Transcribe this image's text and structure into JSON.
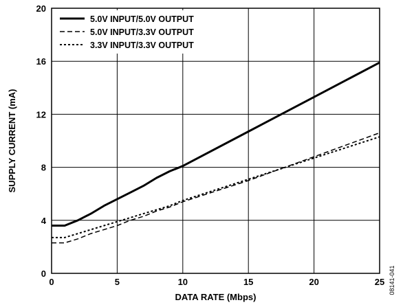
{
  "chart_data": {
    "type": "line",
    "title": "",
    "xlabel": "DATA RATE (Mbps)",
    "ylabel": "SUPPLY CURRENT (mA)",
    "xlim": [
      0,
      25
    ],
    "ylim": [
      0,
      20
    ],
    "xticks": [
      "0",
      "5",
      "10",
      "15",
      "20",
      "25"
    ],
    "yticks": [
      "0",
      "4",
      "8",
      "12",
      "16",
      "20"
    ],
    "grid": true,
    "legend_position": "top-left",
    "series": [
      {
        "name": "5.0V INPUT/5.0V OUTPUT",
        "style": "solid",
        "x": [
          0,
          1,
          2,
          3,
          4,
          5,
          6,
          7,
          8,
          9,
          10,
          15,
          20,
          25
        ],
        "y": [
          3.6,
          3.6,
          4.0,
          4.5,
          5.1,
          5.6,
          6.1,
          6.6,
          7.2,
          7.7,
          8.1,
          10.7,
          13.3,
          15.9
        ]
      },
      {
        "name": "5.0V INPUT/3.3V OUTPUT",
        "style": "dashed",
        "x": [
          0,
          1,
          2,
          3,
          4,
          5,
          6,
          7,
          8,
          9,
          10,
          15,
          20,
          25
        ],
        "y": [
          2.3,
          2.3,
          2.6,
          3.0,
          3.3,
          3.6,
          4.0,
          4.3,
          4.7,
          5.0,
          5.4,
          7.0,
          8.8,
          10.6
        ]
      },
      {
        "name": "3.3V INPUT/3.3V OUTPUT",
        "style": "dotted",
        "x": [
          0,
          1,
          2,
          3,
          4,
          5,
          6,
          7,
          8,
          9,
          10,
          15,
          20,
          25
        ],
        "y": [
          2.7,
          2.7,
          3.0,
          3.3,
          3.6,
          3.9,
          4.2,
          4.5,
          4.8,
          5.1,
          5.5,
          7.1,
          8.7,
          10.3
        ]
      }
    ]
  },
  "figure_id": "08141-041"
}
